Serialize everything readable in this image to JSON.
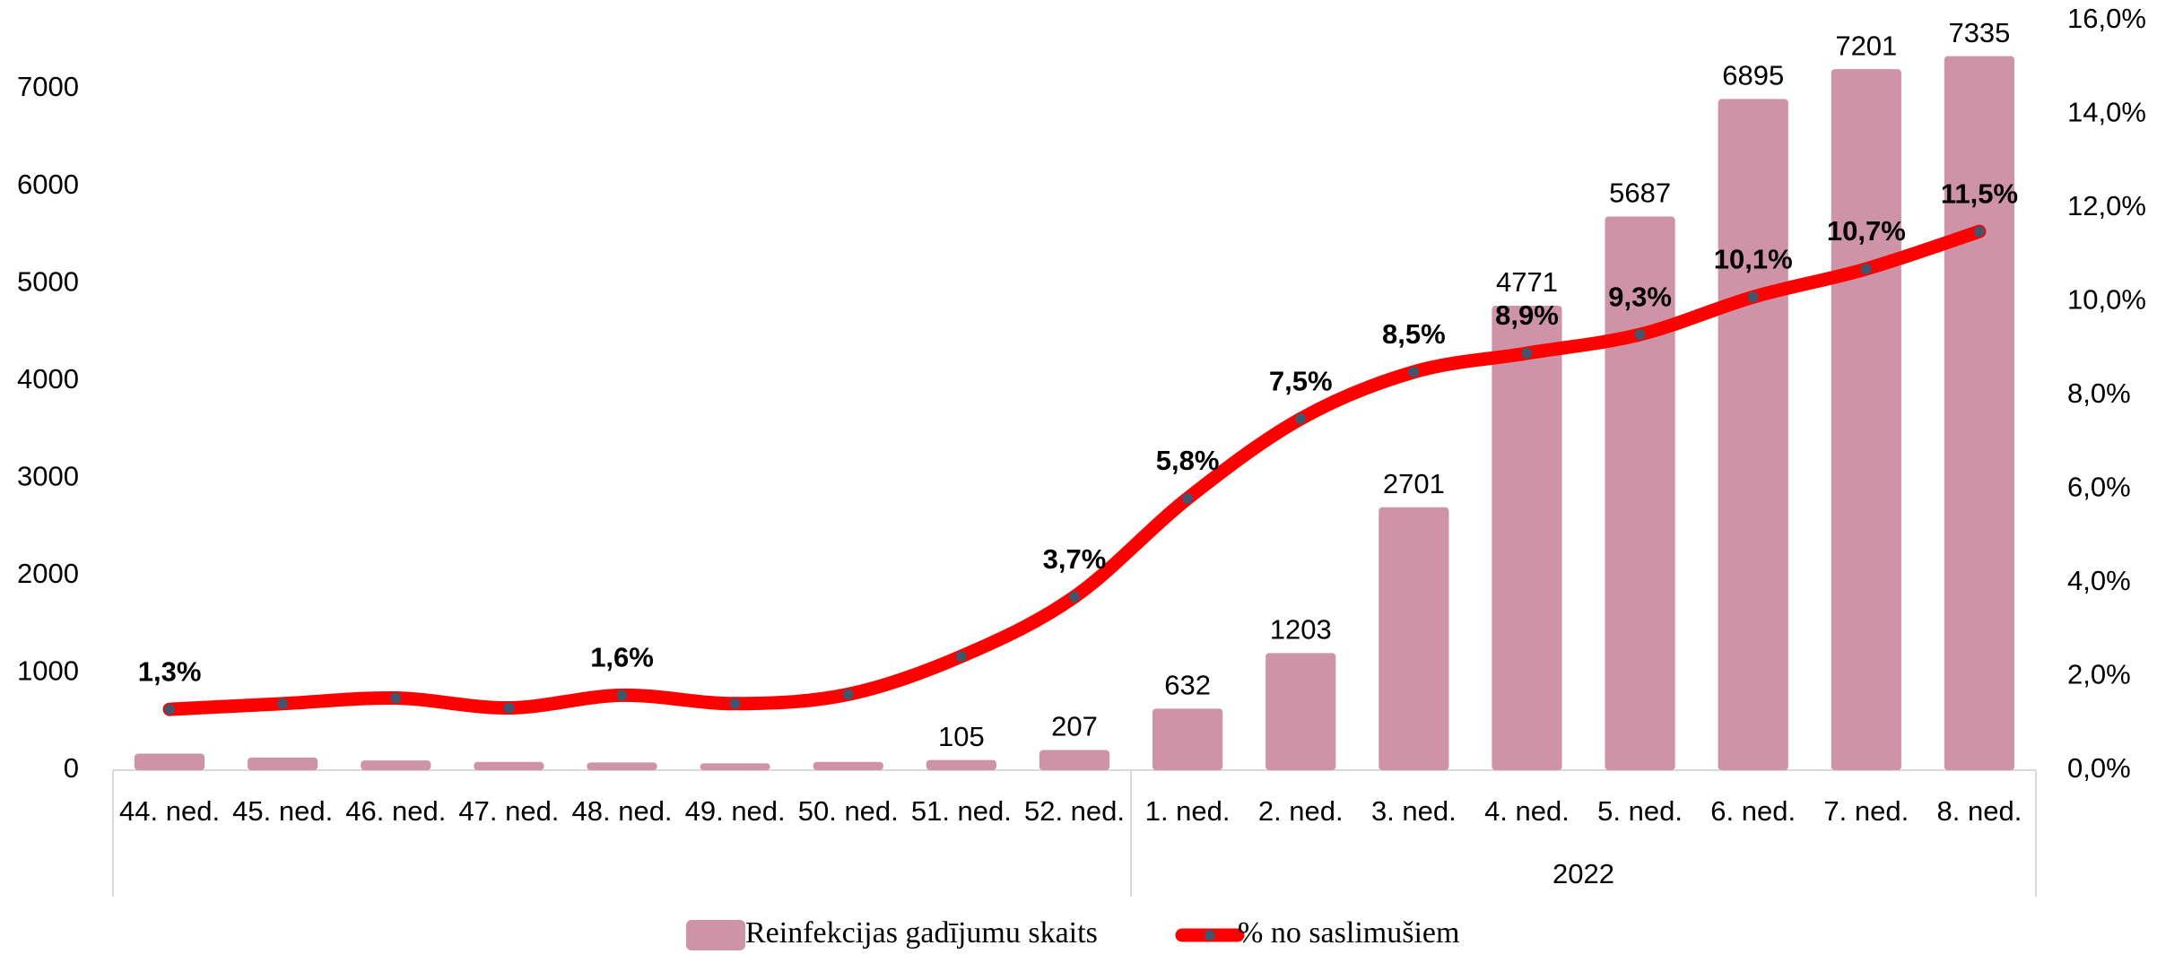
{
  "chart_data": {
    "type": "bar-line",
    "categories": [
      "44. ned.",
      "45. ned.",
      "46. ned.",
      "47. ned.",
      "48. ned.",
      "49. ned.",
      "50. ned.",
      "51. ned.",
      "52. ned.",
      "1. ned.",
      "2. ned.",
      "3. ned.",
      "4. ned.",
      "5. ned.",
      "6. ned.",
      "7. ned.",
      "8. ned."
    ],
    "groups": [
      {
        "label": "2022",
        "first": 9
      }
    ],
    "series": [
      {
        "name": "Reinfekcijas gadījumu skaits",
        "type": "bar",
        "color": "#cf93a8",
        "values": [
          170,
          130,
          100,
          85,
          80,
          70,
          85,
          105,
          207,
          632,
          1203,
          2701,
          4771,
          5687,
          6895,
          7201,
          7335
        ],
        "value_labels": [
          null,
          null,
          null,
          null,
          null,
          null,
          null,
          "105",
          "207",
          "632",
          "1203",
          "2701",
          "4771",
          "5687",
          "6895",
          "7201",
          "7335"
        ]
      },
      {
        "name": "% no saslimušiem",
        "type": "line",
        "axis": "y2",
        "color": "#ff0000",
        "marker_color": "#44546a",
        "values": [
          1.3,
          1.42,
          1.54,
          1.33,
          1.6,
          1.42,
          1.62,
          2.43,
          3.7,
          5.8,
          7.5,
          8.5,
          8.9,
          9.3,
          10.1,
          10.7,
          11.5
        ],
        "value_labels": [
          "1,3%",
          null,
          null,
          null,
          "1,6%",
          null,
          null,
          null,
          "3,7%",
          "5,8%",
          "7,5%",
          "8,5%",
          "8,9%",
          "9,3%",
          "10,1%",
          "10,7%",
          "11,5%"
        ]
      }
    ],
    "ylim": [
      0,
      7700
    ],
    "yticks": [
      0,
      1000,
      2000,
      3000,
      4000,
      5000,
      6000,
      7000
    ],
    "y2lim": [
      0,
      16
    ],
    "y2ticks": [
      {
        "value": 0,
        "label": "0,0%"
      },
      {
        "value": 2,
        "label": "2,0%"
      },
      {
        "value": 4,
        "label": "4,0%"
      },
      {
        "value": 6,
        "label": "6,0%"
      },
      {
        "value": 8,
        "label": "8,0%"
      },
      {
        "value": 10,
        "label": "10,0%"
      },
      {
        "value": 12,
        "label": "12,0%"
      },
      {
        "value": 14,
        "label": "14,0%"
      },
      {
        "value": 16,
        "label": "16,0%"
      }
    ],
    "legend": "bottom",
    "grid": false
  }
}
